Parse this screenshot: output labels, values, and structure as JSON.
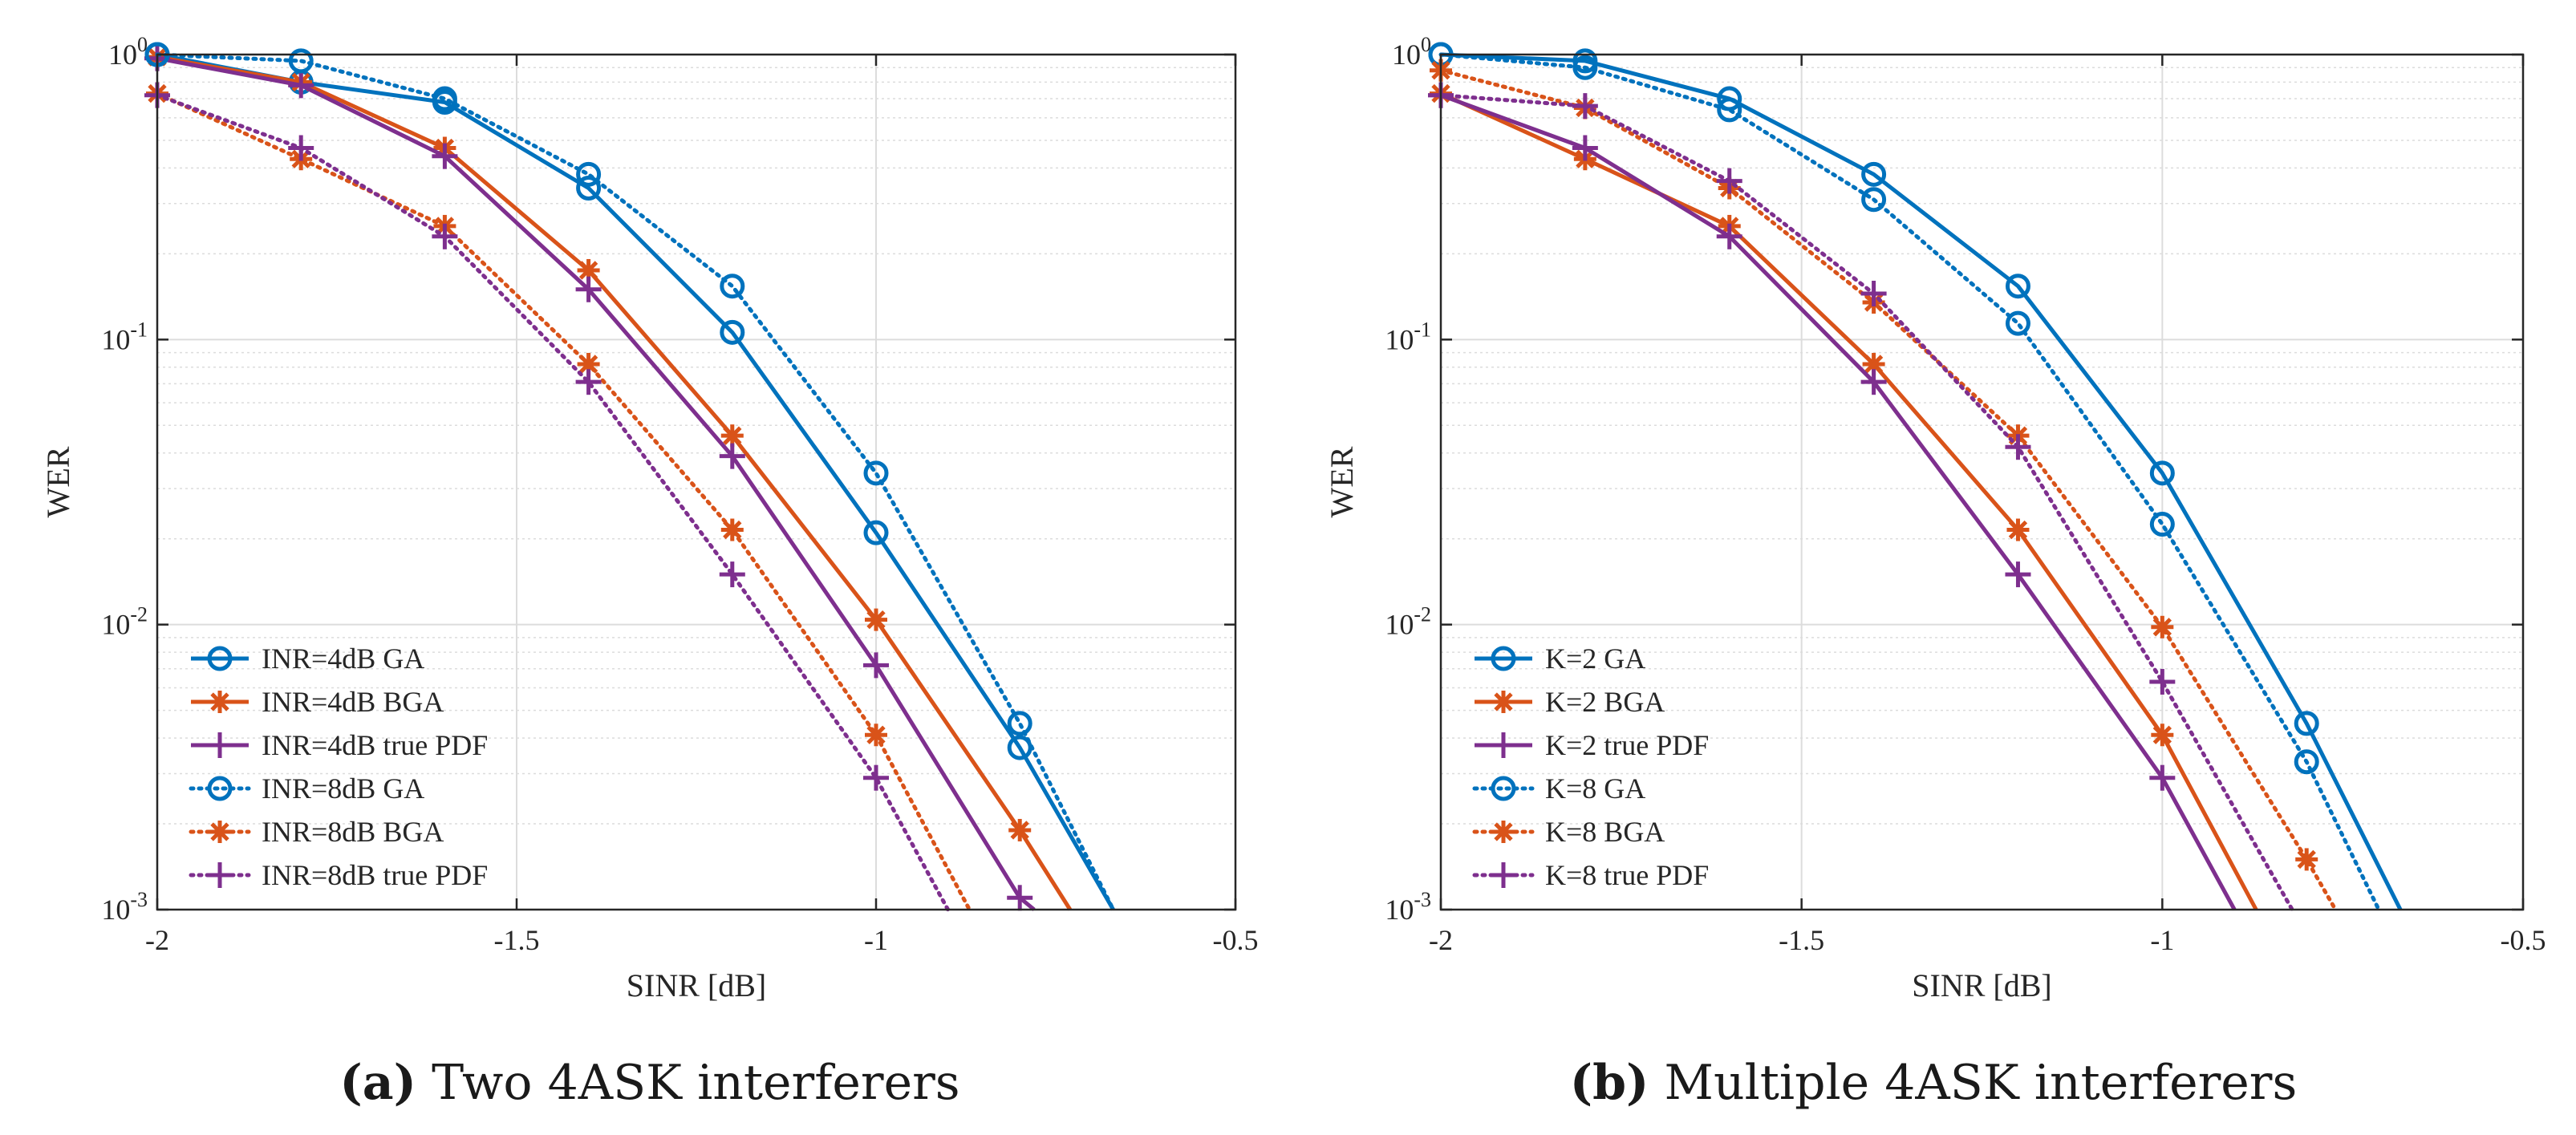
{
  "colors": {
    "blue": "#0072BD",
    "orange": "#D95319",
    "purple": "#7E2F8E",
    "grid": "#dcdcdc",
    "axis": "#262626"
  },
  "chart_data": [
    {
      "type": "line",
      "id": "a",
      "caption_label": "(a)",
      "caption_text": "Two 4ASK interferers",
      "xlabel": "SINR [dB]",
      "ylabel": "WER",
      "xlim": [
        -2,
        -0.5
      ],
      "ylim": [
        0.001,
        1
      ],
      "yscale": "log",
      "grid": true,
      "legend_position": "bottom-left",
      "xticks": [
        -2,
        -1.5,
        -1,
        -0.5
      ],
      "xtick_labels": [
        "-2",
        "-1.5",
        "-1",
        "-0.5"
      ],
      "yticks": [
        1,
        0.1,
        0.01,
        0.001
      ],
      "ytick_labels": [
        {
          "base": "10",
          "exp": "0"
        },
        {
          "base": "10",
          "exp": "-1"
        },
        {
          "base": "10",
          "exp": "-2"
        },
        {
          "base": "10",
          "exp": "-3"
        }
      ],
      "series": [
        {
          "name": "INR=4dB GA",
          "color": "blue",
          "marker": "circle",
          "dash": "solid",
          "x": [
            -2,
            -1.8,
            -1.6,
            -1.4,
            -1.2,
            -1.0,
            -0.8,
            -0.67
          ],
          "y": [
            1.0,
            0.8,
            0.68,
            0.34,
            0.106,
            0.021,
            0.0037,
            0.001
          ],
          "markers": 7
        },
        {
          "name": "INR=4dB BGA",
          "color": "orange",
          "marker": "asterisk",
          "dash": "solid",
          "x": [
            -2,
            -1.8,
            -1.6,
            -1.4,
            -1.2,
            -1.0,
            -0.8,
            -0.73
          ],
          "y": [
            0.98,
            0.8,
            0.47,
            0.175,
            0.046,
            0.0104,
            0.0019,
            0.001
          ],
          "markers": 7
        },
        {
          "name": "INR=4dB true PDF",
          "color": "purple",
          "marker": "plus",
          "dash": "solid",
          "x": [
            -2,
            -1.8,
            -1.6,
            -1.4,
            -1.2,
            -1.0,
            -0.8,
            -0.78
          ],
          "y": [
            0.97,
            0.78,
            0.44,
            0.15,
            0.039,
            0.0072,
            0.0011,
            0.001
          ],
          "markers": 7
        },
        {
          "name": "INR=8dB GA",
          "color": "blue",
          "marker": "circle",
          "dash": "dotted",
          "x": [
            -2,
            -1.8,
            -1.6,
            -1.4,
            -1.2,
            -1.0,
            -0.8,
            -0.67
          ],
          "y": [
            1.0,
            0.95,
            0.7,
            0.38,
            0.154,
            0.034,
            0.0045,
            0.001
          ],
          "markers": 7
        },
        {
          "name": "INR=8dB BGA",
          "color": "orange",
          "marker": "asterisk",
          "dash": "dotted",
          "x": [
            -2,
            -1.8,
            -1.6,
            -1.4,
            -1.2,
            -1.0,
            -0.87
          ],
          "y": [
            0.73,
            0.43,
            0.25,
            0.082,
            0.0215,
            0.0041,
            0.001
          ],
          "markers": 6
        },
        {
          "name": "INR=8dB true PDF",
          "color": "purple",
          "marker": "plus",
          "dash": "dotted",
          "x": [
            -2,
            -1.8,
            -1.6,
            -1.4,
            -1.2,
            -1.0,
            -0.9
          ],
          "y": [
            0.72,
            0.47,
            0.23,
            0.071,
            0.015,
            0.0029,
            0.001
          ],
          "markers": 6
        }
      ]
    },
    {
      "type": "line",
      "id": "b",
      "caption_label": "(b)",
      "caption_text": "Multiple 4ASK interferers",
      "xlabel": "SINR [dB]",
      "ylabel": "WER",
      "xlim": [
        -2,
        -0.5
      ],
      "ylim": [
        0.001,
        1
      ],
      "yscale": "log",
      "grid": true,
      "legend_position": "bottom-left",
      "xticks": [
        -2,
        -1.5,
        -1,
        -0.5
      ],
      "xtick_labels": [
        "-2",
        "-1.5",
        "-1",
        "-0.5"
      ],
      "yticks": [
        1,
        0.1,
        0.01,
        0.001
      ],
      "ytick_labels": [
        {
          "base": "10",
          "exp": "0"
        },
        {
          "base": "10",
          "exp": "-1"
        },
        {
          "base": "10",
          "exp": "-2"
        },
        {
          "base": "10",
          "exp": "-3"
        }
      ],
      "series": [
        {
          "name": "K=2 GA",
          "color": "blue",
          "marker": "circle",
          "dash": "solid",
          "x": [
            -2,
            -1.8,
            -1.6,
            -1.4,
            -1.2,
            -1.0,
            -0.8,
            -0.67
          ],
          "y": [
            1.0,
            0.95,
            0.7,
            0.38,
            0.154,
            0.034,
            0.0045,
            0.001
          ],
          "markers": 7
        },
        {
          "name": "K=2 BGA",
          "color": "orange",
          "marker": "asterisk",
          "dash": "solid",
          "x": [
            -2,
            -1.8,
            -1.6,
            -1.4,
            -1.2,
            -1.0,
            -0.87
          ],
          "y": [
            0.73,
            0.43,
            0.25,
            0.082,
            0.0215,
            0.0041,
            0.001
          ],
          "markers": 6
        },
        {
          "name": "K=2 true PDF",
          "color": "purple",
          "marker": "plus",
          "dash": "solid",
          "x": [
            -2,
            -1.8,
            -1.6,
            -1.4,
            -1.2,
            -1.0,
            -0.9
          ],
          "y": [
            0.72,
            0.47,
            0.23,
            0.071,
            0.015,
            0.0029,
            0.001
          ],
          "markers": 6
        },
        {
          "name": "K=8 GA",
          "color": "blue",
          "marker": "circle",
          "dash": "dotted",
          "x": [
            -2,
            -1.8,
            -1.6,
            -1.4,
            -1.2,
            -1.0,
            -0.8,
            -0.7
          ],
          "y": [
            1.0,
            0.9,
            0.64,
            0.31,
            0.114,
            0.0225,
            0.0033,
            0.001
          ],
          "markers": 7
        },
        {
          "name": "K=8 BGA",
          "color": "orange",
          "marker": "asterisk",
          "dash": "dotted",
          "x": [
            -2,
            -1.8,
            -1.6,
            -1.4,
            -1.2,
            -1.0,
            -0.8,
            -0.76
          ],
          "y": [
            0.88,
            0.65,
            0.34,
            0.135,
            0.046,
            0.0098,
            0.0015,
            0.001
          ],
          "markers": 7
        },
        {
          "name": "K=8 true PDF",
          "color": "purple",
          "marker": "plus",
          "dash": "dotted",
          "x": [
            -2,
            -1.8,
            -1.6,
            -1.4,
            -1.2,
            -1.0,
            -0.82
          ],
          "y": [
            0.72,
            0.66,
            0.36,
            0.145,
            0.042,
            0.0063,
            0.001
          ],
          "markers": 6
        }
      ]
    }
  ]
}
